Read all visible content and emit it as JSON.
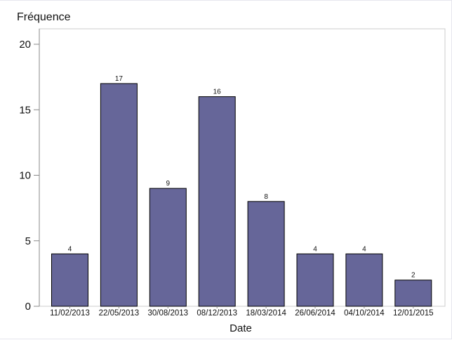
{
  "chart_data": {
    "type": "bar",
    "title": "",
    "ylabel": "Fréquence",
    "xlabel": "Date",
    "categories": [
      "11/02/2013",
      "22/05/2013",
      "30/08/2013",
      "08/12/2013",
      "18/03/2014",
      "26/06/2014",
      "04/10/2014",
      "12/01/2015"
    ],
    "values": [
      4,
      17,
      9,
      16,
      8,
      4,
      4,
      2
    ],
    "ylim": [
      0,
      20
    ],
    "yticks": [
      0,
      5,
      10,
      15,
      20
    ],
    "grid": false,
    "legend": "none",
    "bar_color": "#666699",
    "bar_edge_color": "#000000",
    "plot_border_color": "#cccccc"
  }
}
